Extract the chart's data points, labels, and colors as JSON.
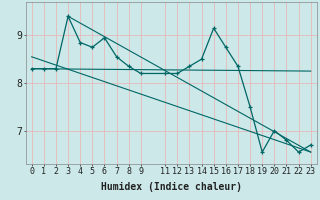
{
  "title": "",
  "xlabel": "Humidex (Indice chaleur)",
  "bg_color": "#cce8e8",
  "grid_color": "#e8b8b8",
  "line_color": "#006666",
  "xlim": [
    -0.5,
    23.5
  ],
  "ylim": [
    6.3,
    9.7
  ],
  "xticks": [
    0,
    1,
    2,
    3,
    4,
    5,
    6,
    7,
    8,
    9,
    11,
    12,
    13,
    14,
    15,
    16,
    17,
    18,
    19,
    20,
    21,
    22,
    23
  ],
  "yticks": [
    7,
    8,
    9
  ],
  "line1_x": [
    0,
    1,
    2,
    3,
    4,
    5,
    6,
    7,
    8,
    9,
    11,
    12,
    13,
    14,
    15,
    16,
    17,
    18,
    19,
    20,
    21,
    22,
    23
  ],
  "line1_y": [
    8.3,
    8.3,
    8.3,
    9.4,
    8.85,
    8.75,
    8.95,
    8.55,
    8.35,
    8.2,
    8.2,
    8.2,
    8.35,
    8.5,
    9.15,
    8.75,
    8.35,
    7.5,
    6.55,
    7.0,
    6.8,
    6.55,
    6.7
  ],
  "trend1_x": [
    0,
    23
  ],
  "trend1_y": [
    8.3,
    8.25
  ],
  "trend2_x": [
    0,
    23
  ],
  "trend2_y": [
    8.55,
    6.55
  ],
  "trend3_x": [
    3,
    23
  ],
  "trend3_y": [
    9.4,
    6.55
  ],
  "xlabel_fontsize": 7,
  "tick_fontsize": 6
}
